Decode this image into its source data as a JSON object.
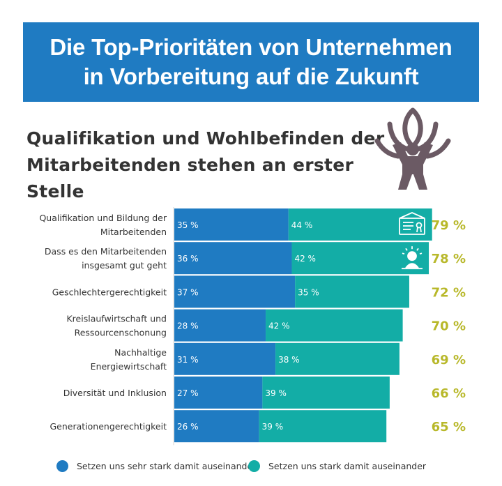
{
  "header": {
    "title_line1": "Die Top-Prioritäten von Unternehmen",
    "title_line2": "in Vorbereitung auf die Zukunft",
    "subtitle_line1": "Qualifikation und Wohlbefinden der",
    "subtitle_line2": "Mitarbeitenden stehen an erster Stelle"
  },
  "colors": {
    "banner": "#1f7bc2",
    "series_strong": "#1f7bc2",
    "series_medium": "#13ada6",
    "total": "#b8b82a",
    "icon": "#6b5a64"
  },
  "icons": {
    "header": "person-lotus-icon",
    "row0": "certificate-icon",
    "row1": "wellbeing-person-icon"
  },
  "chart_data": {
    "type": "bar",
    "orientation": "horizontal",
    "stacked": true,
    "value_unit": "%",
    "categories": [
      [
        "Qualifikation und Bildung der",
        "Mitarbeitenden"
      ],
      [
        "Dass es den Mitarbeitenden",
        "insgesamt gut geht"
      ],
      [
        "Geschlechtergerechtigkeit"
      ],
      [
        "Kreislaufwirtschaft und",
        "Ressourcenschonung"
      ],
      [
        "Nachhaltige",
        "Energiewirtschaft"
      ],
      [
        "Diversität und Inklusion"
      ],
      [
        "Generationengerechtigkeit"
      ]
    ],
    "series": [
      {
        "name": "Setzen uns sehr stark damit auseinander",
        "values": [
          35,
          36,
          37,
          28,
          31,
          27,
          26
        ]
      },
      {
        "name": "Setzen uns stark damit auseinander",
        "values": [
          44,
          42,
          35,
          42,
          38,
          39,
          39
        ]
      }
    ],
    "totals": [
      79,
      78,
      72,
      70,
      69,
      66,
      65
    ],
    "legend_position": "bottom"
  }
}
